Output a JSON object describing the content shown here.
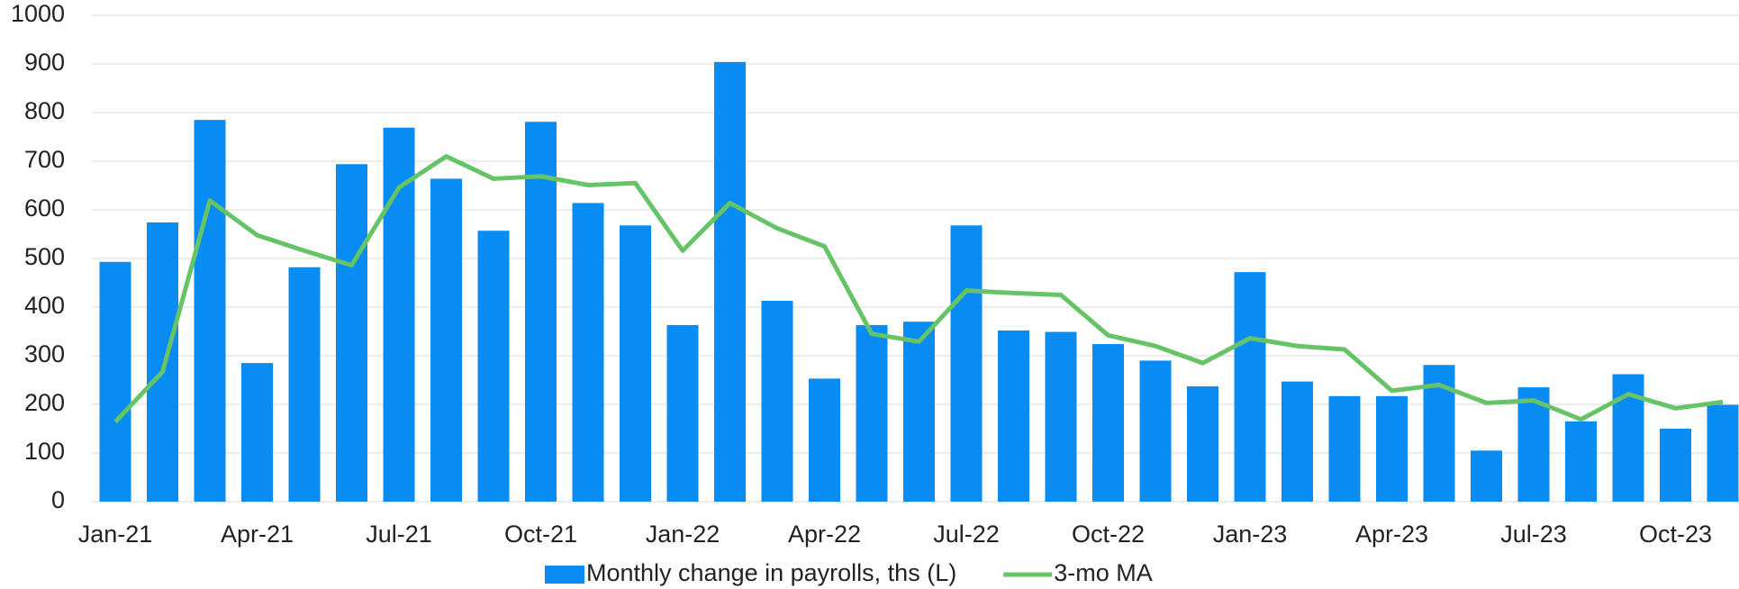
{
  "chart_data": {
    "type": "bar",
    "categories": [
      "Jan-21",
      null,
      null,
      "Apr-21",
      null,
      null,
      "Jul-21",
      null,
      null,
      "Oct-21",
      null,
      null,
      "Jan-22",
      null,
      null,
      "Apr-22",
      null,
      null,
      "Jul-22",
      null,
      null,
      "Oct-22",
      null,
      null,
      "Jan-23",
      null,
      null,
      "Apr-23",
      null,
      null,
      "Jul-23",
      null,
      null,
      "Oct-23",
      null
    ],
    "series": [
      {
        "name": "Monthly change in payrolls, ths (L)",
        "type": "bar",
        "color": "#0a8cf5",
        "values": [
          493,
          574,
          785,
          285,
          482,
          694,
          769,
          664,
          557,
          781,
          614,
          568,
          363,
          904,
          413,
          253,
          363,
          370,
          568,
          352,
          349,
          324,
          290,
          237,
          472,
          247,
          217,
          217,
          281,
          105,
          235,
          165,
          262,
          150,
          199
        ]
      },
      {
        "name": "3-mo MA",
        "type": "line",
        "color": "#66c466",
        "values": [
          164,
          267,
          619,
          548,
          516,
          486,
          646,
          710,
          664,
          669,
          651,
          655,
          516,
          614,
          562,
          525,
          345,
          329,
          434,
          429,
          425,
          342,
          320,
          285,
          336,
          320,
          313,
          228,
          240,
          203,
          208,
          169,
          221,
          192,
          205
        ]
      }
    ],
    "ylim": [
      0,
      1000
    ],
    "yticks": [
      0,
      100,
      200,
      300,
      400,
      500,
      600,
      700,
      800,
      900,
      1000
    ],
    "grid": true
  }
}
